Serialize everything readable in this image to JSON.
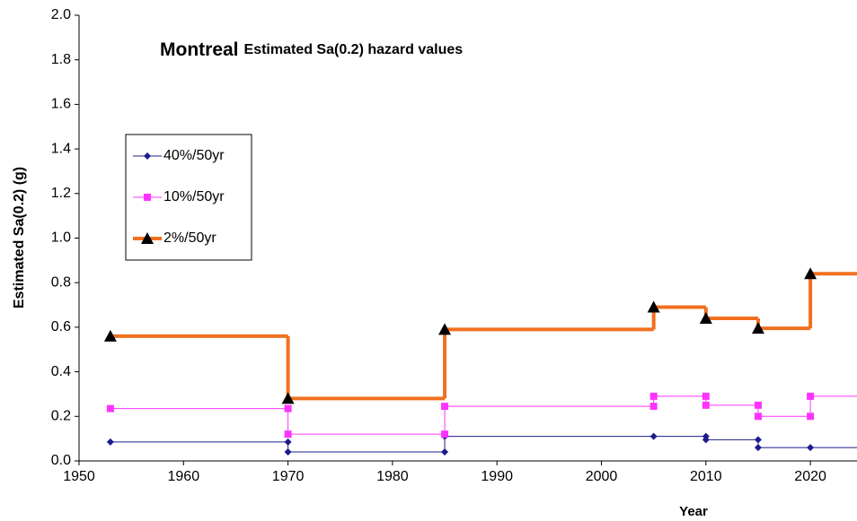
{
  "chart_data": {
    "type": "step",
    "title": "Montreal",
    "subtitle": "Estimated  Sa(0.2) hazard values",
    "y_label": "Estimated Sa(0.2) (g)",
    "x_label": "Year",
    "xlim": [
      1950,
      2025
    ],
    "xticks": [
      1950,
      1960,
      1970,
      1980,
      1990,
      2000,
      2010,
      2020
    ],
    "ylim": [
      0,
      2
    ],
    "yticks": [
      {
        "value": 0,
        "label": "0.0"
      },
      {
        "value": 0.2,
        "label": "0.2"
      },
      {
        "value": 0.4,
        "label": "0.4"
      },
      {
        "value": 0.6,
        "label": "0.6"
      },
      {
        "value": 0.8,
        "label": "0.8"
      },
      {
        "value": 1,
        "label": "1.0"
      },
      {
        "value": 1.2,
        "label": "1.2"
      },
      {
        "value": 1.4,
        "label": "1.4"
      },
      {
        "value": 1.6,
        "label": "1.6"
      },
      {
        "value": 1.8,
        "label": "1.8"
      },
      {
        "value": 2,
        "label": "2.0"
      }
    ],
    "grid": false,
    "legend": "upper left",
    "series": [
      {
        "name": "40%/50yr",
        "color": "#1c1c8c",
        "marker": "diamond",
        "line_width": 1,
        "x": [
          1953,
          1970,
          1970,
          1985,
          1985,
          2005,
          2010,
          2010,
          2015,
          2015,
          2020
        ],
        "values": [
          0.085,
          0.085,
          0.04,
          0.04,
          0.11,
          0.11,
          0.11,
          0.095,
          0.095,
          0.06,
          0.06
        ]
      },
      {
        "name": "10%/50yr",
        "color": "#ff33ff",
        "marker": "square",
        "line_width": 1,
        "x": [
          1953,
          1970,
          1970,
          1985,
          1985,
          2005,
          2005,
          2010,
          2010,
          2015,
          2015,
          2020,
          2020
        ],
        "values": [
          0.235,
          0.235,
          0.12,
          0.12,
          0.245,
          0.245,
          0.29,
          0.29,
          0.25,
          0.25,
          0.2,
          0.2,
          0.29
        ]
      },
      {
        "name": "2%/50yr",
        "color": "#f07020",
        "marker": "triangle",
        "marker_color": "#000000",
        "line_width": 4,
        "x": [
          1953,
          1970,
          1985,
          2005,
          2010,
          2015,
          2020
        ],
        "values": [
          0.56,
          0.28,
          0.59,
          0.69,
          0.64,
          0.595,
          0.84
        ]
      }
    ]
  }
}
